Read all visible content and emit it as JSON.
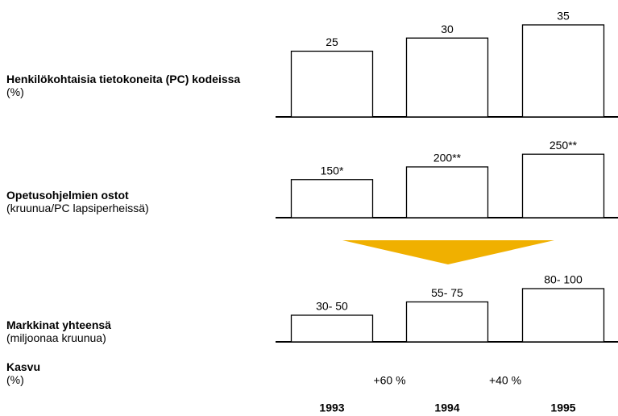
{
  "categories": [
    "1993",
    "1994",
    "1995"
  ],
  "chart_data": [
    {
      "type": "bar",
      "title": "Henkilökohtaisia tietokoneita (PC) kodeissa",
      "subtitle": "(%)",
      "color": "#ffffff",
      "values": [
        25,
        30,
        35
      ]
    },
    {
      "type": "bar",
      "title": "Opetusohjelmien ostot",
      "subtitle": "(kruunua/PC lapsiperheissä)",
      "color": "#ffffff",
      "values": [
        150,
        200,
        250
      ],
      "value_labels": [
        "150*",
        "200**",
        "250**"
      ]
    },
    {
      "type": "bar",
      "title": "Markkinat yhteensä",
      "subtitle": "(miljoonaa kruunua)",
      "color": "#ffffff",
      "values": [
        50,
        75,
        100
      ],
      "value_labels": [
        "30- 50",
        "55- 75",
        "80- 100"
      ]
    }
  ],
  "growth": {
    "title": "Kasvu",
    "subtitle": "(%)",
    "values": [
      60,
      40
    ],
    "value_labels": [
      "+60 %",
      "+40 %"
    ]
  },
  "arrow_color": "#f0b000"
}
